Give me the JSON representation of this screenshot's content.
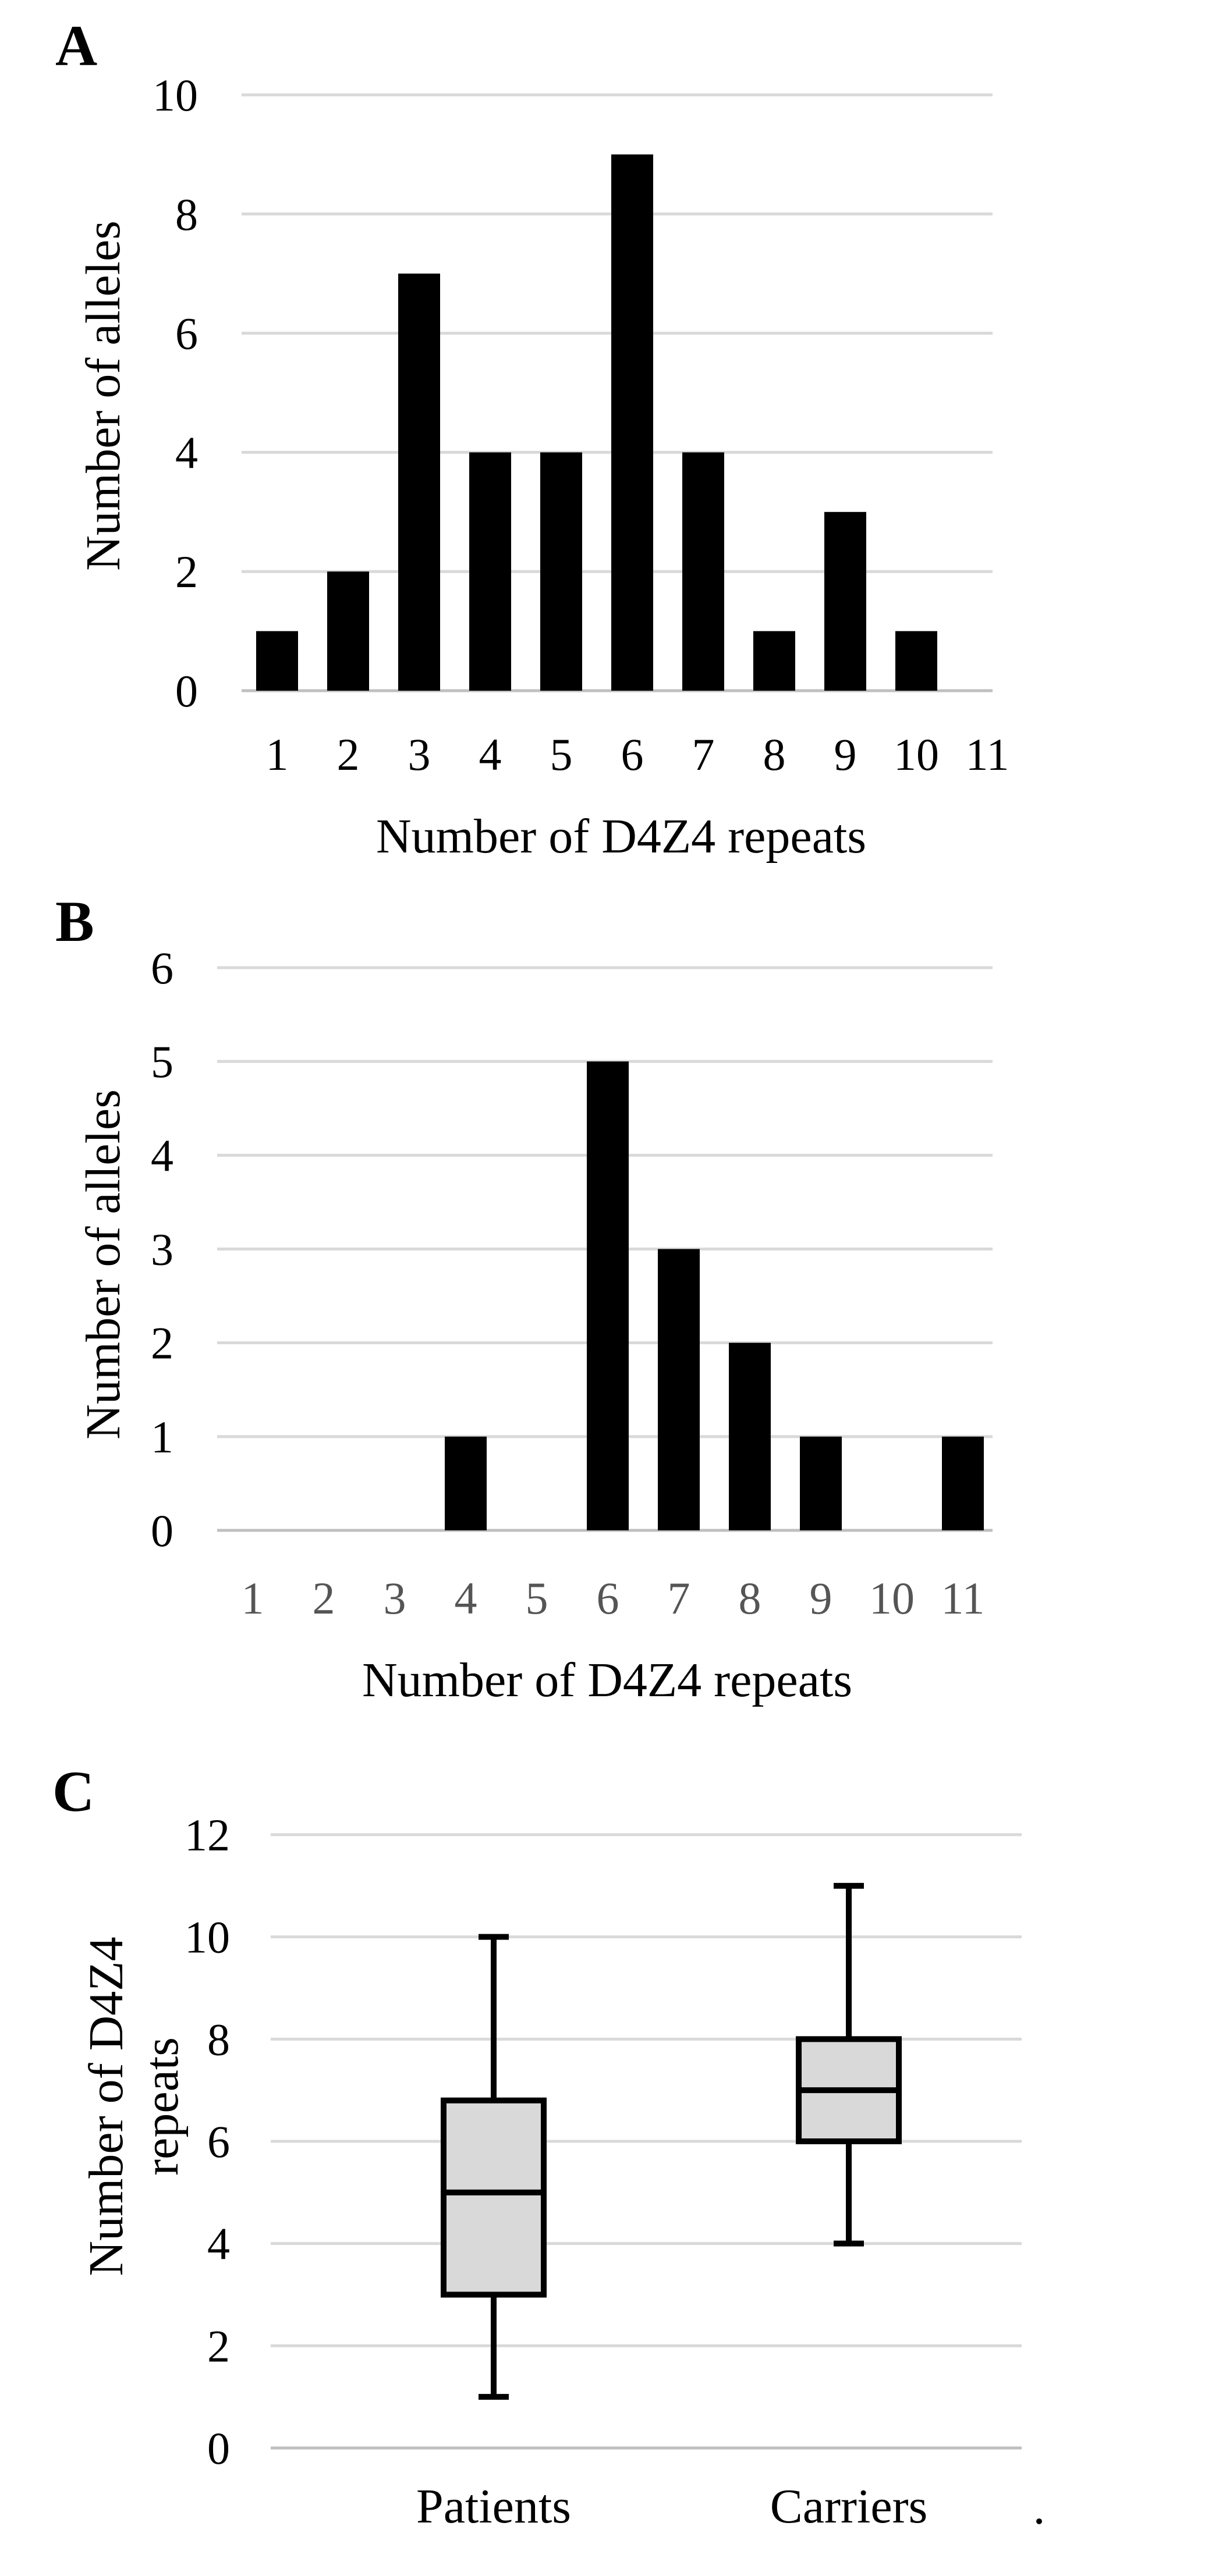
{
  "chart_data": [
    {
      "panel": "A",
      "type": "bar",
      "categories": [
        "1",
        "2",
        "3",
        "4",
        "5",
        "6",
        "7",
        "8",
        "9",
        "10",
        "11"
      ],
      "values": [
        1,
        2,
        7,
        4,
        4,
        9,
        4,
        1,
        3,
        1,
        0
      ],
      "yticks": [
        "0",
        "2",
        "4",
        "6",
        "8",
        "10"
      ],
      "ylim": [
        0,
        10
      ],
      "xlabel": "Number of D4Z4 repeats",
      "ylabel": "Number of alleles",
      "grid": true,
      "colors": {
        "bar": "#000000",
        "grid": "#d9d9d9"
      }
    },
    {
      "panel": "B",
      "type": "bar",
      "categories": [
        "1",
        "2",
        "3",
        "4",
        "5",
        "6",
        "7",
        "8",
        "9",
        "10",
        "11"
      ],
      "values": [
        0,
        0,
        0,
        1,
        0,
        5,
        3,
        2,
        1,
        0,
        1
      ],
      "yticks": [
        "0",
        "1",
        "2",
        "3",
        "4",
        "5",
        "6"
      ],
      "ylim": [
        0,
        6
      ],
      "xlabel": "Number of D4Z4 repeats",
      "ylabel": "Number of alleles",
      "grid": true,
      "colors": {
        "bar": "#000000",
        "grid": "#d9d9d9",
        "tick_text": "#555555"
      }
    },
    {
      "panel": "C",
      "type": "box",
      "categories": [
        "Patients",
        "Carriers"
      ],
      "boxes": [
        {
          "name": "Patients",
          "min": 1,
          "q1": 3,
          "median": 5,
          "q3": 6.8,
          "max": 10
        },
        {
          "name": "Carriers",
          "min": 4,
          "q1": 6,
          "median": 7,
          "q3": 8,
          "max": 11
        }
      ],
      "yticks": [
        "0",
        "2",
        "4",
        "6",
        "8",
        "10",
        "12"
      ],
      "ylim": [
        0,
        12
      ],
      "ylabel_lines": [
        "Number of D4Z4",
        "repeats"
      ],
      "grid": true,
      "colors": {
        "box_fill": "#d9d9d9",
        "grid": "#d9d9d9"
      }
    }
  ],
  "trailing_mark": "."
}
